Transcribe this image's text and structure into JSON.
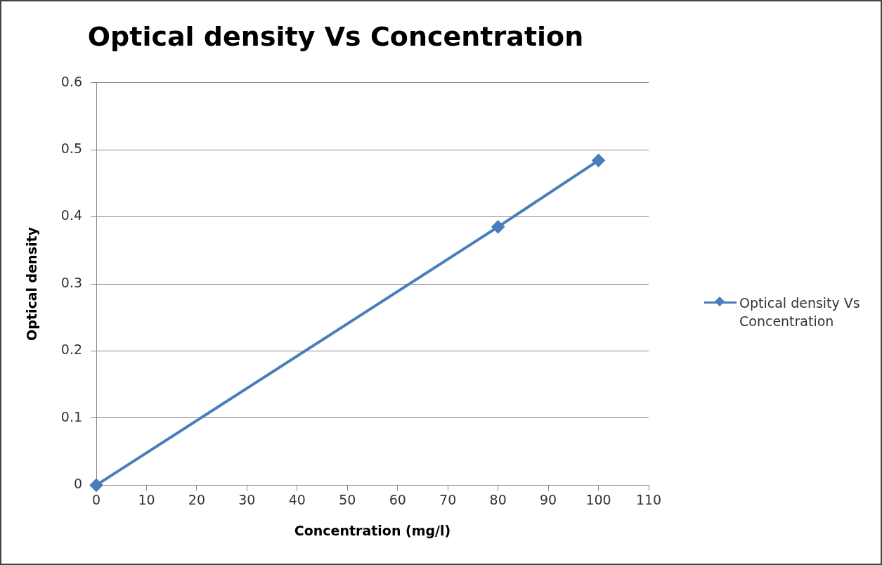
{
  "chart_data": {
    "type": "line",
    "title": "Optical density Vs Concentration",
    "xlabel": "Concentration (mg/l)",
    "ylabel": "Optical density",
    "x": [
      0,
      80,
      100
    ],
    "series": [
      {
        "name": "Optical density Vs Concentration",
        "color": "#4a7ebb",
        "values": [
          0,
          0.385,
          0.484
        ]
      }
    ],
    "xlim": [
      0,
      110
    ],
    "xticks": [
      0,
      10,
      20,
      30,
      40,
      50,
      60,
      70,
      80,
      90,
      100,
      110
    ],
    "ylim": [
      0,
      0.6
    ],
    "yticks": [
      0,
      0.1,
      0.2,
      0.3,
      0.4,
      0.5,
      0.6
    ],
    "grid": "y",
    "legend": "right",
    "marker": "diamond",
    "line_style": "solid"
  }
}
